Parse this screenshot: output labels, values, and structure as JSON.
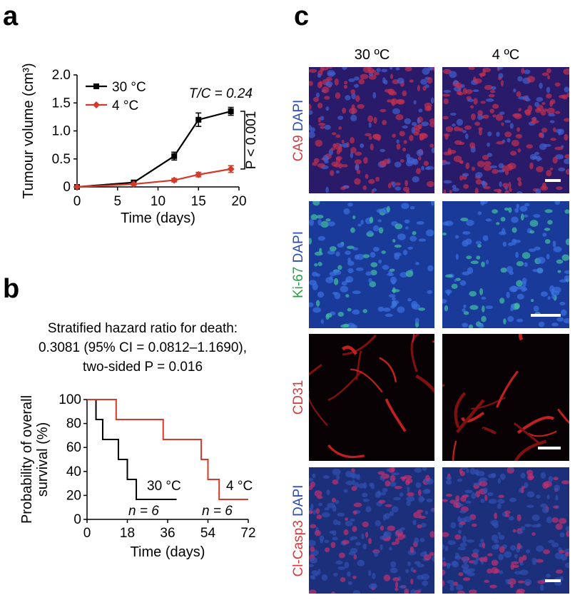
{
  "panels": {
    "a": "a",
    "b": "b",
    "c": "c"
  },
  "chart_a": {
    "type": "line",
    "xlabel": "Time (days)",
    "ylabel": "Tumour volume (cm³)",
    "xlim": [
      0,
      20
    ],
    "ylim": [
      0,
      2.0
    ],
    "xticks": [
      "0",
      "5",
      "10",
      "15",
      "20"
    ],
    "yticks": [
      "0",
      "0.5",
      "1.0",
      "1.5",
      "2.0"
    ],
    "annotation_tc": "T/C = 0.24",
    "annotation_p": "P < 0.001",
    "series": [
      {
        "name": "30 °C",
        "color": "#000000",
        "marker": "square",
        "x": [
          0,
          7,
          12,
          15,
          19
        ],
        "y": [
          0,
          0.08,
          0.55,
          1.2,
          1.35
        ],
        "err": [
          0,
          0.03,
          0.07,
          0.12,
          0.07
        ]
      },
      {
        "name": "4 °C",
        "color": "#d23a2a",
        "marker": "diamond",
        "x": [
          0,
          7,
          12,
          15,
          19
        ],
        "y": [
          0,
          0.05,
          0.12,
          0.22,
          0.32
        ],
        "err": [
          0,
          0.02,
          0.03,
          0.04,
          0.06
        ]
      }
    ]
  },
  "chart_b": {
    "type": "step",
    "title_lines": [
      "Stratified hazard ratio for death:",
      "0.3081 (95% CI = 0.0812–1.1690),",
      "two-sided P = 0.016"
    ],
    "xlabel": "Time (days)",
    "ylabel_lines": [
      "Probability of overall",
      "survival (%)"
    ],
    "xlim": [
      0,
      72
    ],
    "ylim": [
      0,
      100
    ],
    "xticks": [
      "0",
      "18",
      "36",
      "54",
      "72"
    ],
    "yticks": [
      "0",
      "20",
      "40",
      "60",
      "80",
      "100"
    ],
    "series": [
      {
        "name": "30 °C",
        "n_label": "n = 6",
        "color": "#000000",
        "x": [
          0,
          4,
          4,
          7,
          7,
          14,
          14,
          18,
          18,
          22,
          22,
          40
        ],
        "y": [
          100,
          100,
          83.3,
          83.3,
          66.7,
          66.7,
          50,
          50,
          33.3,
          33.3,
          16.7,
          16.7
        ]
      },
      {
        "name": "4 °C",
        "n_label": "n = 6",
        "color": "#d23a2a",
        "x": [
          0,
          13,
          13,
          34,
          34,
          51,
          51,
          54,
          54,
          59,
          59,
          72
        ],
        "y": [
          100,
          100,
          83.3,
          83.3,
          66.7,
          66.7,
          50,
          50,
          33.3,
          33.3,
          16.7,
          16.7
        ]
      }
    ]
  },
  "micrographs": {
    "columns": [
      "30 ºC",
      "4 ºC"
    ],
    "rows": [
      {
        "id": "ca9",
        "label_red": "CA9",
        "label_blue": " DAPI",
        "label_green": "",
        "bg": "#2a1a6a",
        "dot": "#c03050",
        "dot2": "#4060d0"
      },
      {
        "id": "ki67",
        "label_red": "",
        "label_green": "Ki-67",
        "label_blue": " DAPI",
        "bg": "#1a3a9a",
        "dot": "#3a70e0",
        "dot2": "#40c0a0"
      },
      {
        "id": "cd31",
        "label_red": "CD31",
        "label_blue": "",
        "label_green": "",
        "bg": "#080204",
        "dot": "#c02020",
        "dot2": "#801010"
      },
      {
        "id": "clcasp3",
        "label_red": "Cl-Casp3",
        "label_blue": " DAPI",
        "label_green": "",
        "bg": "#1c2f7a",
        "dot": "#3050b0",
        "dot2": "#c03070"
      }
    ],
    "colors": {
      "red": "#d8393b",
      "green": "#25a244",
      "blue": "#2c4db8"
    }
  }
}
